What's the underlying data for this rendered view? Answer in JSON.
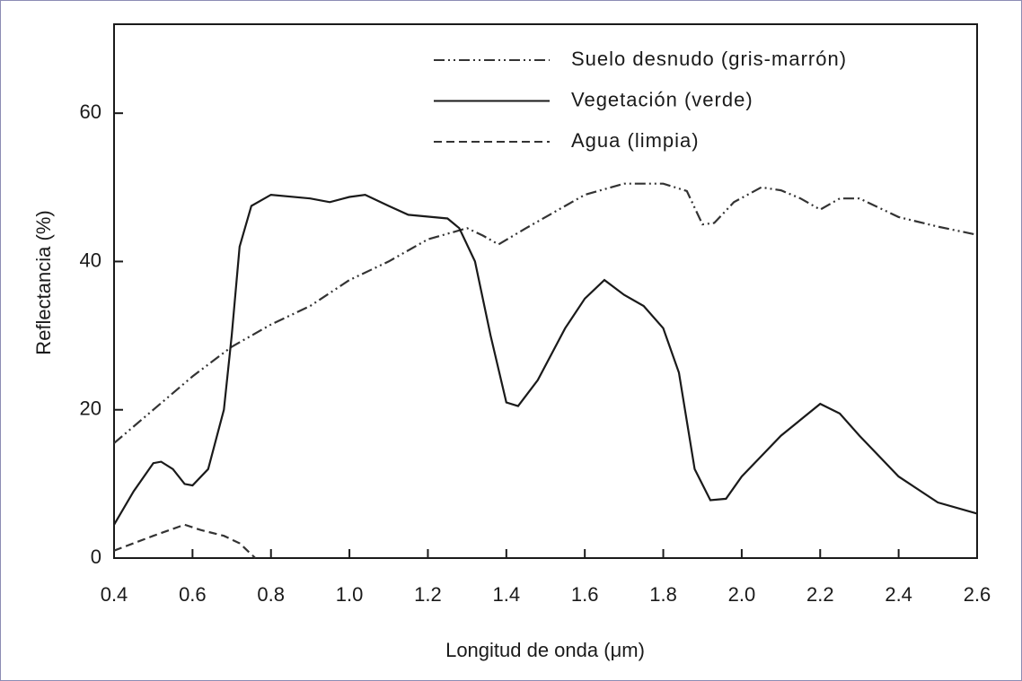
{
  "chart_data": {
    "type": "line",
    "xlabel": "Longitud de onda (μm)",
    "ylabel": "Reflectancia (%)",
    "xlim": [
      0.4,
      2.6
    ],
    "xticks": [
      0.4,
      0.6,
      0.8,
      {
        "value": 1,
        "label": "1.0"
      },
      1.2,
      1.4,
      1.6,
      1.8,
      {
        "value": 2,
        "label": "2.0"
      },
      2.2,
      2.4,
      2.6
    ],
    "ylim": [
      0,
      72
    ],
    "yticks": [
      0,
      20,
      40,
      60
    ],
    "legend": "upper right",
    "series": [
      {
        "name": "Suelo desnudo (gris-marrón)",
        "color": "#333333",
        "dash": "dashdotdot",
        "x": [
          0.4,
          0.5,
          0.6,
          0.7,
          0.8,
          0.9,
          1.0,
          1.1,
          1.2,
          1.3,
          1.34,
          1.38,
          1.45,
          1.5,
          1.6,
          1.7,
          1.8,
          1.86,
          1.9,
          1.93,
          1.98,
          2.05,
          2.1,
          2.15,
          2.2,
          2.25,
          2.3,
          2.4,
          2.5,
          2.6
        ],
        "values": [
          15.5,
          20,
          24.5,
          28.5,
          31.5,
          34,
          37.5,
          40,
          43,
          44.5,
          43.5,
          42.3,
          44.5,
          46,
          49,
          50.5,
          50.5,
          49.5,
          45,
          45.2,
          48,
          50,
          49.6,
          48.5,
          47,
          48.5,
          48.5,
          46,
          44.7,
          43.6
        ]
      },
      {
        "name": "Vegetación (verde)",
        "color": "#1a1a1a",
        "dash": "solid",
        "x": [
          0.4,
          0.45,
          0.5,
          0.52,
          0.55,
          0.58,
          0.6,
          0.64,
          0.68,
          0.7,
          0.72,
          0.75,
          0.8,
          0.9,
          0.95,
          1.0,
          1.04,
          1.1,
          1.15,
          1.25,
          1.28,
          1.32,
          1.36,
          1.4,
          1.43,
          1.48,
          1.55,
          1.6,
          1.65,
          1.7,
          1.75,
          1.8,
          1.84,
          1.88,
          1.92,
          1.96,
          2.0,
          2.1,
          2.2,
          2.25,
          2.3,
          2.4,
          2.5,
          2.6
        ],
        "values": [
          4.5,
          9,
          12.8,
          13,
          12,
          10,
          9.8,
          12,
          20,
          30,
          42,
          47.5,
          49,
          48.5,
          48,
          48.7,
          49,
          47.5,
          46.3,
          45.8,
          44.5,
          40,
          30,
          21,
          20.5,
          24,
          31,
          35,
          37.5,
          35.5,
          34,
          31,
          25,
          12,
          7.8,
          8,
          11,
          16.5,
          20.8,
          19.5,
          16.5,
          11,
          7.5,
          6
        ]
      },
      {
        "name": "Agua (limpia)",
        "color": "#333333",
        "dash": "dashed",
        "x": [
          0.4,
          0.5,
          0.58,
          0.62,
          0.68,
          0.72,
          0.76
        ],
        "values": [
          1,
          3,
          4.5,
          3.8,
          3,
          2,
          0
        ]
      }
    ]
  }
}
